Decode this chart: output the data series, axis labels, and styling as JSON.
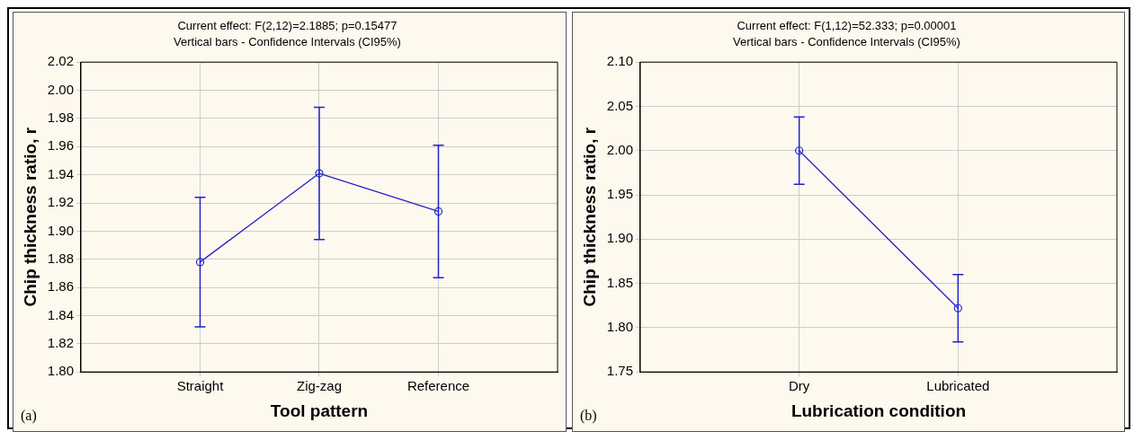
{
  "chart_data": [
    {
      "type": "line",
      "title": "Current effect: F(2,12)=2.1885; p=0.15477",
      "subtitle": "Vertical bars - Confidence Intervals (CI95%)",
      "xlabel": "Tool pattern",
      "ylabel": "Chip thickness ratio, r",
      "categories": [
        "Straight",
        "Zig-zag",
        "Reference"
      ],
      "series": [
        {
          "color": "#2222cc",
          "values": [
            1.878,
            1.941,
            1.914
          ],
          "errors": [
            0.046,
            0.047,
            0.047
          ]
        }
      ],
      "ylim": [
        1.8,
        2.02
      ],
      "yticks": [
        {
          "value": 1.8,
          "label": "1.80"
        },
        1.82,
        1.84,
        1.86,
        1.88,
        {
          "value": 1.9,
          "label": "1.90"
        },
        1.92,
        1.94,
        1.96,
        1.98,
        {
          "value": 2.0,
          "label": "2.00"
        },
        2.02
      ],
      "grid": true,
      "marker": "circle",
      "line_style": "solid",
      "annotations": [
        "(a)"
      ]
    },
    {
      "type": "line",
      "title": "Current effect: F(1,12)=52.333; p=0.00001",
      "subtitle": "Vertical bars - Confidence Intervals (CI95%)",
      "xlabel": "Lubrication condition",
      "ylabel": "Chip thickness ratio, r",
      "categories": [
        "Dry",
        "Lubricated"
      ],
      "series": [
        {
          "color": "#2222cc",
          "values": [
            2.0,
            1.822
          ],
          "errors": [
            0.038,
            0.038
          ]
        }
      ],
      "ylim": [
        1.75,
        2.1
      ],
      "yticks": [
        1.75,
        {
          "value": 1.8,
          "label": "1.80"
        },
        1.85,
        {
          "value": 1.9,
          "label": "1.90"
        },
        1.95,
        {
          "value": 2.0,
          "label": "2.00"
        },
        2.05,
        {
          "value": 2.1,
          "label": "2.10"
        }
      ],
      "grid": true,
      "marker": "circle",
      "line_style": "solid",
      "annotations": [
        "(b)"
      ]
    }
  ]
}
